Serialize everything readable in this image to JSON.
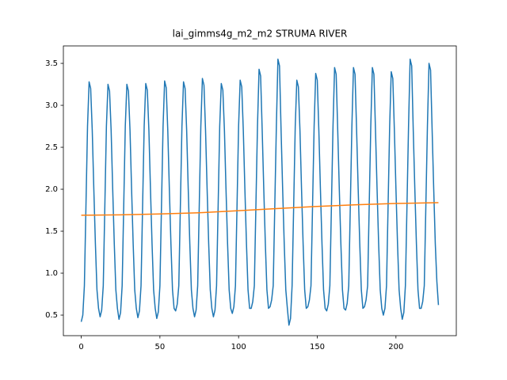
{
  "chart_data": {
    "type": "line",
    "title": "lai_gimms4g_m2_m2 STRUMA RIVER",
    "xlim": [
      -11.35,
      238.35
    ],
    "xticks": [
      0,
      50,
      100,
      150,
      200
    ],
    "ylim": [
      0.255,
      3.708
    ],
    "yticks": [
      0.5,
      {
        "value": 1,
        "label": "1.0"
      },
      1.5,
      {
        "value": 2,
        "label": "2.0"
      },
      2.5,
      {
        "value": 3,
        "label": "3.0"
      },
      3.5
    ],
    "grid": false,
    "series": [
      {
        "color": "#1f77b4",
        "x": [
          0,
          1,
          2,
          3,
          4,
          5,
          6,
          7,
          8,
          9,
          10,
          11,
          12,
          13,
          14,
          15,
          16,
          17,
          18,
          19,
          20,
          21,
          22,
          23,
          24,
          25,
          26,
          27,
          28,
          29,
          30,
          31,
          32,
          33,
          34,
          35,
          36,
          37,
          38,
          39,
          40,
          41,
          42,
          43,
          44,
          45,
          46,
          47,
          48,
          49,
          50,
          51,
          52,
          53,
          54,
          55,
          56,
          57,
          58,
          59,
          60,
          61,
          62,
          63,
          64,
          65,
          66,
          67,
          68,
          69,
          70,
          71,
          72,
          73,
          74,
          75,
          76,
          77,
          78,
          79,
          80,
          81,
          82,
          83,
          84,
          85,
          86,
          87,
          88,
          89,
          90,
          91,
          92,
          93,
          94,
          95,
          96,
          97,
          98,
          99,
          100,
          101,
          102,
          103,
          104,
          105,
          106,
          107,
          108,
          109,
          110,
          111,
          112,
          113,
          114,
          115,
          116,
          117,
          118,
          119,
          120,
          121,
          122,
          123,
          124,
          125,
          126,
          127,
          128,
          129,
          130,
          131,
          132,
          133,
          134,
          135,
          136,
          137,
          138,
          139,
          140,
          141,
          142,
          143,
          144,
          145,
          146,
          147,
          148,
          149,
          150,
          151,
          152,
          153,
          154,
          155,
          156,
          157,
          158,
          159,
          160,
          161,
          162,
          163,
          164,
          165,
          166,
          167,
          168,
          169,
          170,
          171,
          172,
          173,
          174,
          175,
          176,
          177,
          178,
          179,
          180,
          181,
          182,
          183,
          184,
          185,
          186,
          187,
          188,
          189,
          190,
          191,
          192,
          193,
          194,
          195,
          196,
          197,
          198,
          199,
          200,
          201,
          202,
          203,
          204,
          205,
          206,
          207,
          208,
          209,
          210,
          211,
          212,
          213,
          214,
          215,
          216,
          217,
          218,
          219,
          220,
          221,
          222,
          223,
          224,
          225,
          226,
          227
        ],
        "values": [
          0.42,
          0.5,
          0.85,
          1.8,
          2.75,
          3.28,
          3.2,
          2.7,
          2.0,
          1.35,
          0.8,
          0.58,
          0.48,
          0.56,
          0.85,
          1.8,
          2.75,
          3.25,
          3.17,
          2.7,
          2.0,
          1.35,
          0.8,
          0.58,
          0.45,
          0.53,
          0.85,
          1.8,
          2.75,
          3.25,
          3.17,
          2.7,
          2.0,
          1.35,
          0.8,
          0.58,
          0.47,
          0.55,
          0.85,
          1.8,
          2.75,
          3.26,
          3.18,
          2.7,
          2.0,
          1.35,
          0.8,
          0.58,
          0.46,
          0.54,
          0.85,
          1.8,
          2.75,
          3.29,
          3.21,
          2.7,
          2.0,
          1.35,
          0.8,
          0.58,
          0.55,
          0.63,
          0.85,
          1.8,
          2.75,
          3.28,
          3.2,
          2.7,
          2.0,
          1.35,
          0.8,
          0.58,
          0.48,
          0.56,
          0.85,
          1.8,
          2.75,
          3.32,
          3.24,
          2.7,
          2.0,
          1.35,
          0.8,
          0.58,
          0.48,
          0.56,
          0.85,
          1.8,
          2.75,
          3.26,
          3.18,
          2.7,
          2.0,
          1.35,
          0.8,
          0.58,
          0.52,
          0.6,
          0.85,
          1.8,
          2.75,
          3.3,
          3.22,
          2.7,
          2.0,
          1.35,
          0.8,
          0.58,
          0.58,
          0.66,
          0.85,
          1.8,
          2.75,
          3.43,
          3.35,
          2.7,
          2.0,
          1.35,
          0.8,
          0.58,
          0.6,
          0.68,
          0.85,
          1.8,
          2.75,
          3.55,
          3.47,
          2.7,
          2.0,
          1.35,
          0.8,
          0.58,
          0.38,
          0.46,
          0.85,
          1.8,
          2.75,
          3.3,
          3.22,
          2.7,
          2.0,
          1.35,
          0.8,
          0.58,
          0.6,
          0.68,
          0.85,
          1.8,
          2.75,
          3.38,
          3.3,
          2.7,
          2.0,
          1.35,
          0.8,
          0.58,
          0.55,
          0.63,
          0.85,
          1.8,
          2.75,
          3.45,
          3.37,
          2.7,
          2.0,
          1.35,
          0.8,
          0.58,
          0.56,
          0.64,
          0.85,
          1.8,
          2.75,
          3.45,
          3.37,
          2.7,
          2.0,
          1.35,
          0.8,
          0.58,
          0.6,
          0.68,
          0.85,
          1.8,
          2.75,
          3.45,
          3.37,
          2.7,
          2.0,
          1.35,
          0.8,
          0.58,
          0.5,
          0.58,
          0.85,
          1.8,
          2.75,
          3.4,
          3.32,
          2.7,
          2.0,
          1.35,
          0.8,
          0.58,
          0.45,
          0.53,
          0.85,
          1.8,
          2.75,
          3.55,
          3.47,
          2.7,
          2.0,
          1.35,
          0.8,
          0.58,
          0.58,
          0.66,
          0.85,
          1.8,
          2.75,
          3.5,
          3.42,
          2.7,
          2.0,
          1.35,
          0.9,
          0.62
        ]
      },
      {
        "color": "#ff7f0e",
        "x": [
          0,
          25,
          50,
          75,
          100,
          125,
          150,
          175,
          200,
          227
        ],
        "values": [
          1.69,
          1.695,
          1.705,
          1.72,
          1.745,
          1.77,
          1.795,
          1.815,
          1.83,
          1.84
        ]
      }
    ]
  }
}
